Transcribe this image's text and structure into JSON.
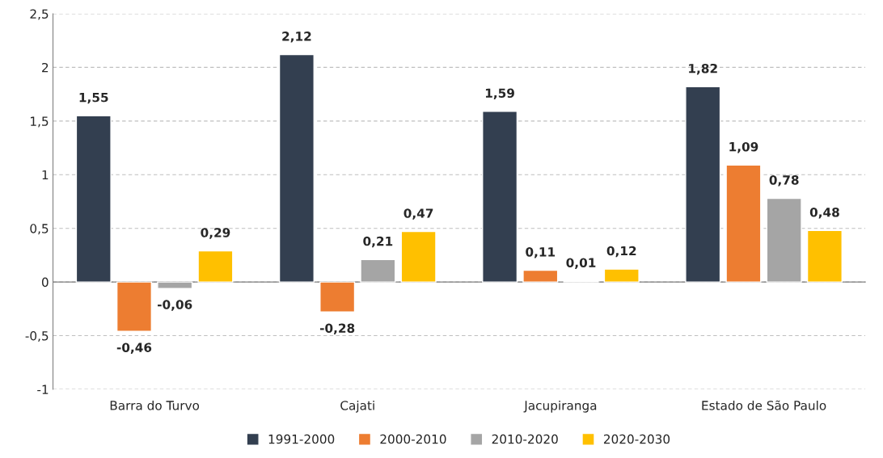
{
  "chart_data": {
    "type": "bar",
    "categories": [
      "Barra do Turvo",
      "Cajati",
      "Jacupiranga",
      "Estado de São Paulo"
    ],
    "series": [
      {
        "name": "1991-2000",
        "color": "#333f50",
        "values": [
          1.55,
          2.12,
          1.59,
          1.82
        ],
        "value_labels": [
          "1,55",
          "2,12",
          "1,59",
          "1,82"
        ]
      },
      {
        "name": "2000-2010",
        "color": "#ed7d31",
        "values": [
          -0.46,
          -0.28,
          0.11,
          1.09
        ],
        "value_labels": [
          "-0,46",
          "-0,28",
          "0,11",
          "1,09"
        ]
      },
      {
        "name": "2010-2020",
        "color": "#a5a5a5",
        "values": [
          -0.06,
          0.21,
          0.01,
          0.78
        ],
        "value_labels": [
          "-0,06",
          "0,21",
          "0,01",
          "0,78"
        ]
      },
      {
        "name": "2020-2030",
        "color": "#ffc000",
        "values": [
          0.29,
          0.47,
          0.12,
          0.48
        ],
        "value_labels": [
          "0,29",
          "0,47",
          "0,12",
          "0,48"
        ]
      }
    ],
    "ylim": [
      -1,
      2.5
    ],
    "yticks": [
      {
        "value": -1,
        "label": "-1"
      },
      {
        "value": -0.5,
        "label": "-0,5"
      },
      0,
      {
        "value": 0.5,
        "label": "0,5"
      },
      1,
      {
        "value": 1.5,
        "label": "1,5"
      },
      2,
      {
        "value": 2.5,
        "label": "2,5"
      }
    ],
    "grid": "y",
    "legend": "bottom"
  }
}
